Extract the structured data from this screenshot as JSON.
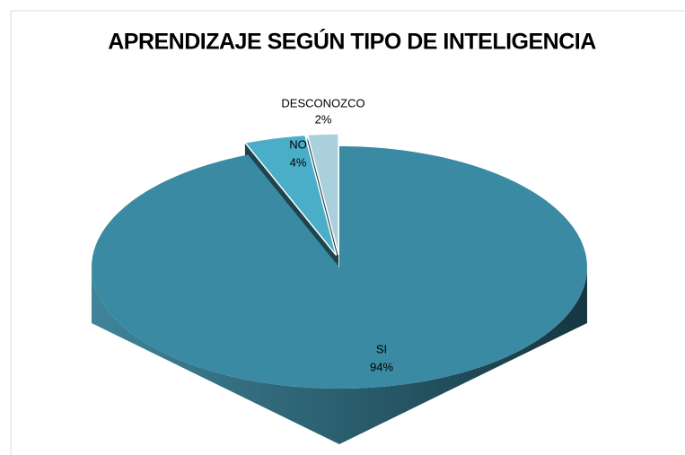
{
  "chart_data": {
    "type": "pie",
    "title": "APRENDIZAJE SEGÚN TIPO DE INTELIGENCIA",
    "categories": [
      "SI",
      "NO",
      "DESCONOZCO"
    ],
    "values": [
      94,
      4,
      2
    ],
    "value_labels": [
      "94%",
      "4%",
      "2%"
    ],
    "colors": [
      "#3b8aa3",
      "#4aaec8",
      "#a9d0dc"
    ]
  }
}
